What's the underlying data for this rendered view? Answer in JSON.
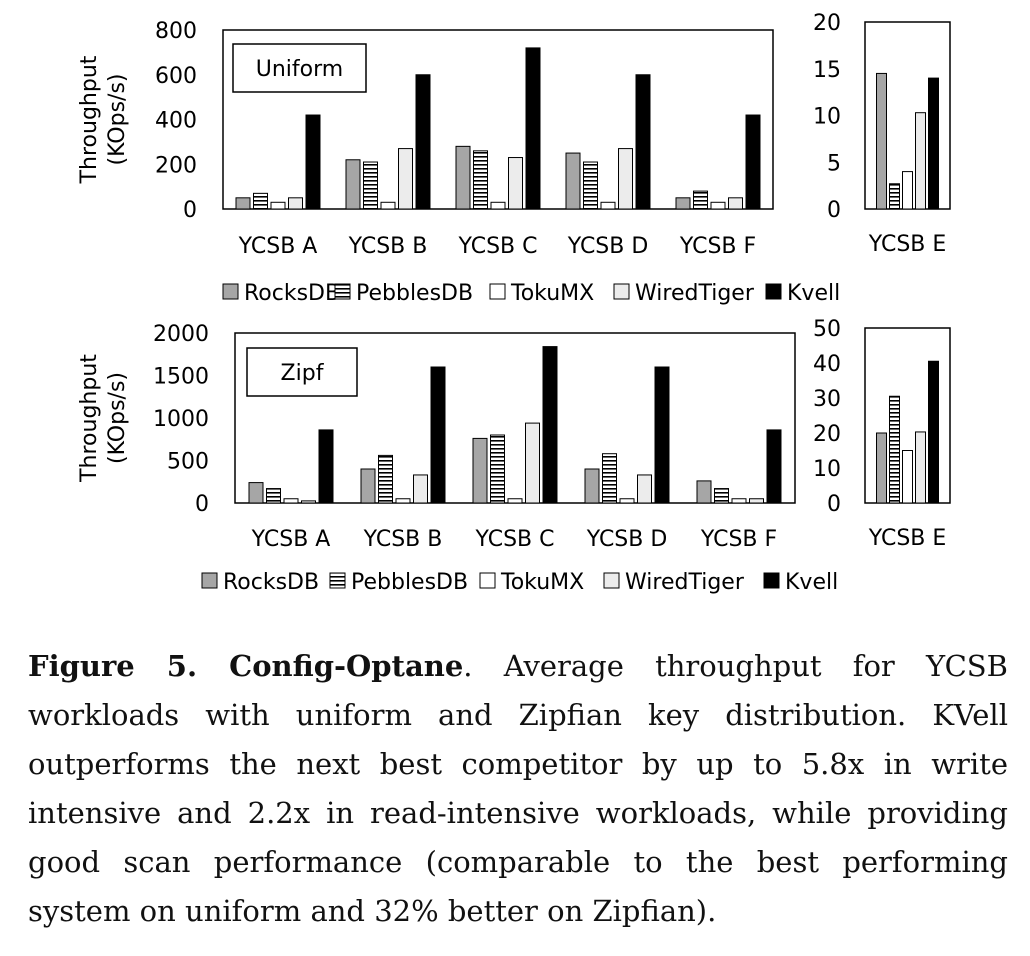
{
  "caption": {
    "label": "Figure 5. Config-Optane",
    "text": ". Average throughput for YCSB workloads with uniform and Zipfian key distribution. KVell outperforms the next best competitor by up to 5.8x in write intensive and 2.2x in read-intensive workloads, while providing good scan performance (comparable to the best performing system on uniform and 32% better on Zipfian)."
  },
  "colors": {
    "RocksDB": "#a6a6a6",
    "PebblesDB": "#ffffff",
    "TokuMX": "#ffffff",
    "WiredTiger": "#ececec",
    "Kvell": "#000000"
  },
  "chart_data": [
    {
      "type": "bar",
      "title": "Uniform",
      "ylabel": "Throughput (KOps/s)",
      "ylim": [
        0,
        800
      ],
      "yticks": [
        0,
        200,
        400,
        600,
        800
      ],
      "categories": [
        "YCSB A",
        "YCSB B",
        "YCSB C",
        "YCSB D",
        "YCSB F"
      ],
      "series": [
        {
          "name": "RocksDB",
          "values": [
            50,
            220,
            280,
            250,
            50
          ]
        },
        {
          "name": "PebblesDB",
          "values": [
            70,
            210,
            260,
            210,
            80
          ]
        },
        {
          "name": "TokuMX",
          "values": [
            30,
            30,
            30,
            30,
            30
          ]
        },
        {
          "name": "WiredTiger",
          "values": [
            50,
            270,
            230,
            270,
            50
          ]
        },
        {
          "name": "Kvell",
          "values": [
            420,
            600,
            720,
            600,
            420
          ]
        }
      ],
      "legend": "bottom"
    },
    {
      "type": "bar",
      "title": "",
      "ylim": [
        0,
        20
      ],
      "yticks": [
        0,
        5,
        10,
        15,
        20
      ],
      "categories": [
        "YCSB E"
      ],
      "series": [
        {
          "name": "RocksDB",
          "values": [
            14.5
          ]
        },
        {
          "name": "PebblesDB",
          "values": [
            2.7
          ]
        },
        {
          "name": "TokuMX",
          "values": [
            4
          ]
        },
        {
          "name": "WiredTiger",
          "values": [
            10.3
          ]
        },
        {
          "name": "Kvell",
          "values": [
            14
          ]
        }
      ]
    },
    {
      "type": "bar",
      "title": "Zipf",
      "ylabel": "Throughput (KOps/s)",
      "ylim": [
        0,
        2000
      ],
      "yticks": [
        0,
        500,
        1000,
        1500,
        2000
      ],
      "categories": [
        "YCSB A",
        "YCSB B",
        "YCSB C",
        "YCSB D",
        "YCSB F"
      ],
      "series": [
        {
          "name": "RocksDB",
          "values": [
            240,
            400,
            760,
            400,
            260
          ]
        },
        {
          "name": "PebblesDB",
          "values": [
            170,
            560,
            800,
            580,
            170
          ]
        },
        {
          "name": "TokuMX",
          "values": [
            50,
            50,
            50,
            50,
            50
          ]
        },
        {
          "name": "WiredTiger",
          "values": [
            25,
            330,
            940,
            330,
            50
          ]
        },
        {
          "name": "Kvell",
          "values": [
            860,
            1600,
            1840,
            1600,
            860
          ]
        }
      ],
      "legend": "bottom"
    },
    {
      "type": "bar",
      "title": "",
      "ylim": [
        0,
        50
      ],
      "yticks": [
        0,
        10,
        20,
        30,
        40,
        50
      ],
      "categories": [
        "YCSB E"
      ],
      "series": [
        {
          "name": "RocksDB",
          "values": [
            20
          ]
        },
        {
          "name": "PebblesDB",
          "values": [
            30.5
          ]
        },
        {
          "name": "TokuMX",
          "values": [
            15
          ]
        },
        {
          "name": "WiredTiger",
          "values": [
            20.3
          ]
        },
        {
          "name": "Kvell",
          "values": [
            40.5
          ]
        }
      ]
    }
  ]
}
